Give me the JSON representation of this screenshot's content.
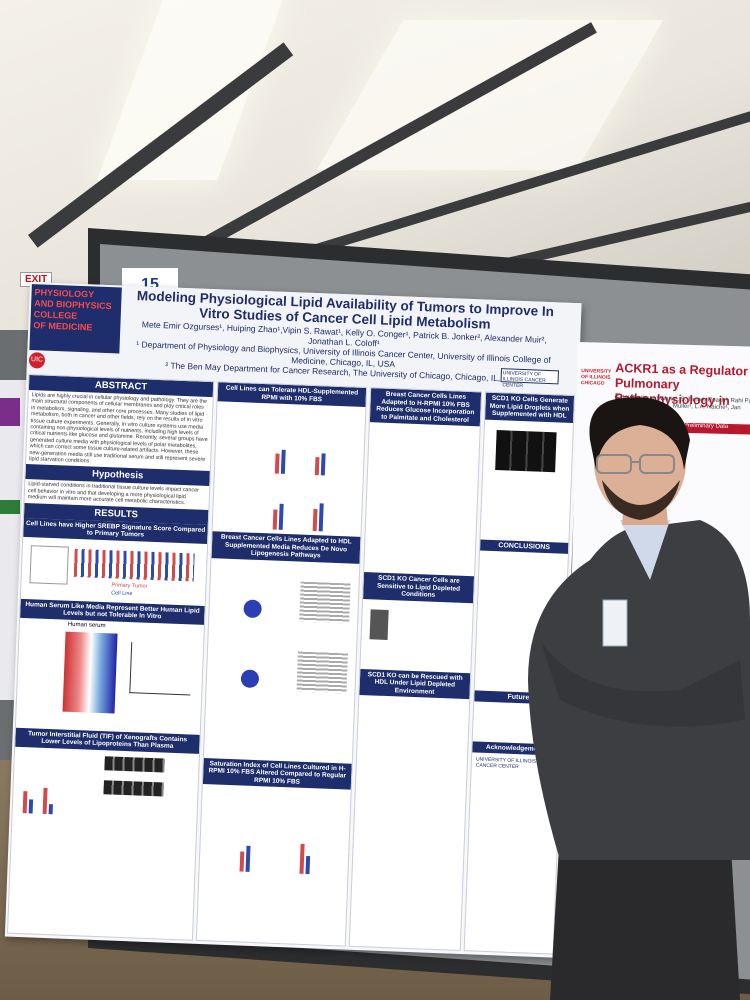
{
  "board_number": "15",
  "exit_sign": "EXIT",
  "poster": {
    "dept_lines": [
      "PHYSIOLOGY",
      "AND BIOPHYSICS",
      "COLLEGE",
      "OF MEDICINE"
    ],
    "logo_text": "UIC",
    "title": "Modeling Physiological Lipid Availability of Tumors to Improve In Vitro Studies of Cancer Cell Lipid Metabolism",
    "authors": "Mete Emir Ozgurses¹, Huiping Zhao¹,Vipin S. Rawat¹, Kelly O. Conger¹, Patrick B. Jonker², Alexander Muir², Jonathan L. Coloff¹",
    "affiliation_1": "¹ Department of Physiology and Biophysics, University of Illinois Cancer Center, University of Illinois College of Medicine, Chicago, IL, USA",
    "affiliation_2": "² The Ben May Department for Cancer Research, The University of Chicago, Chicago, IL, USA",
    "cancer_center_logo": "UNIVERSITY OF ILLINOIS CANCER CENTER",
    "abstract_head": "ABSTRACT",
    "abstract_text": "Lipids are highly crucial in cellular physiology and pathology. They are the main structural components of cellular membranes and play critical roles in metabolism, signaling, and other core processes. Many studies of lipid metabolism, both in cancer and other fields, rely on the results of in vitro tissue culture experiments. Generally, in vitro culture systems use media containing non-physiological levels of nutrients, including high levels of critical nutrients like glucose and glutamine. Recently, several groups have generated culture media with physiological levels of polar metabolites, which can correct some tissue culture-related artifacts. However, these new-generation media still use traditional serum and still represent severe lipid starvation conditions.",
    "hypothesis_head": "Hypothesis",
    "hypothesis_text": "Lipid-starved conditions in traditional tissue culture levels impact cancer cell behavior in vitro and that developing a more physiological lipid medium will maintain more accurate cell metabolic characteristics.",
    "results_head": "RESULTS",
    "result_1": "Cell Lines have Higher SREBP Signature Score Compared to Primary Tumors",
    "legend_primary": "Primary Tumor",
    "legend_cell": "Cell Line",
    "result_2": "Human Serum Like Media Represent Better Human Lipid Levels but not Tolerable In Vitro",
    "human_serum_label": "Human serum",
    "result_3": "Tumor Interstitial Fluid (TIF) of Xenografts Contains Lower Levels of Lipoproteins Than Plasma",
    "col2_head": "Cell Lines can Tolerate HDL-Supplemented RPMI with 10% FBS",
    "col2_head_b": "Breast Cancer Cells Lines Adapted to HDL Supplemented Media Reduces De Novo Lipogenesis Pathways",
    "col2_head_c": "Saturation Index of Cell Lines Cultured in H-RPMI 10% FBS Altered Compared to Regular RPMI 10% FBS",
    "col3_head": "Breast Cancer Cells Lines Adapted to H-RPMI 10% FBS Reduces Glucose Incorporation to Palmitate and Cholesterol",
    "col3_head_b": "SCD1 KO Cancer Cells are Sensitive to Lipid Depleted Conditions",
    "col3_head_c": "SCD1 KO can be Rescued with HDL Under Lipid Depleted Environment",
    "col4_head": "SCD1 KO Cells Generate More Lipid Droplets when Supplemented with HDL",
    "conclusions_head": "CONCLUSIONS",
    "future_head": "Future",
    "ack_head": "Acknowledgements",
    "footer_logo": "UNIVERSITY OF ILLINOIS CANCER CENTER"
  },
  "poster2": {
    "logo": "UNIVERSITY OF ILLINOIS CHICAGO",
    "title": "ACKR1 as a Regulator of Pulmonary Pathophysiology in Metastasis",
    "authors": "Gabrielle (Hsun) Wang¹, S. Tanner Roach¹, Rahi Patel¹, Jenna Thompson¹, A. Muller¹, L.A. Naiche¹, Jan Kitajewski¹",
    "band": "Preliminary Data"
  }
}
